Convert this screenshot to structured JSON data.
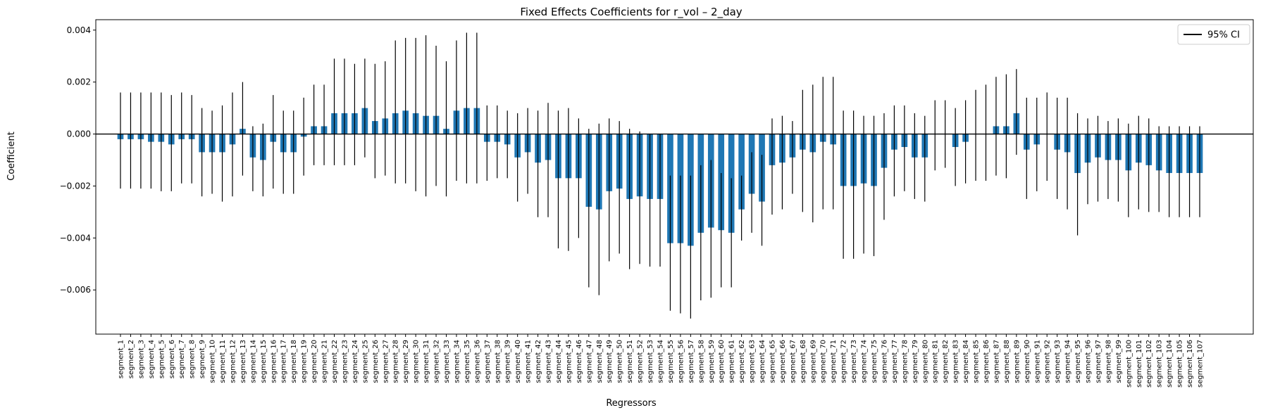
{
  "chart_data": {
    "type": "bar",
    "title": "Fixed Effects Coefficients for r_vol – 2_day",
    "xlabel": "Regressors",
    "ylabel": "Coefficient",
    "ylim": [
      -0.0077,
      0.0044
    ],
    "yticks": [
      -0.006,
      -0.004,
      -0.002,
      0.0,
      0.002,
      0.004
    ],
    "ytick_labels": [
      "−0.006",
      "−0.004",
      "−0.002",
      "0.000",
      "0.002",
      "0.004"
    ],
    "grid": false,
    "zero_line": true,
    "legend": {
      "placement": "top-right",
      "entries": [
        "95% CI"
      ]
    },
    "bar_color": "#1f77b4",
    "ci_color": "#000000",
    "categories": [
      "segment_1",
      "segment_2",
      "segment_3",
      "segment_4",
      "segment_5",
      "segment_6",
      "segment_7",
      "segment_8",
      "segment_9",
      "segment_10",
      "segment_11",
      "segment_12",
      "segment_13",
      "segment_14",
      "segment_15",
      "segment_16",
      "segment_17",
      "segment_18",
      "segment_19",
      "segment_20",
      "segment_21",
      "segment_22",
      "segment_23",
      "segment_24",
      "segment_25",
      "segment_26",
      "segment_27",
      "segment_28",
      "segment_29",
      "segment_30",
      "segment_31",
      "segment_32",
      "segment_33",
      "segment_34",
      "segment_35",
      "segment_36",
      "segment_37",
      "segment_38",
      "segment_39",
      "segment_40",
      "segment_41",
      "segment_42",
      "segment_43",
      "segment_44",
      "segment_45",
      "segment_46",
      "segment_47",
      "segment_48",
      "segment_49",
      "segment_50",
      "segment_51",
      "segment_52",
      "segment_53",
      "segment_54",
      "segment_55",
      "segment_56",
      "segment_57",
      "segment_58",
      "segment_59",
      "segment_60",
      "segment_61",
      "segment_62",
      "segment_63",
      "segment_64",
      "segment_65",
      "segment_66",
      "segment_67",
      "segment_68",
      "segment_69",
      "segment_70",
      "segment_71",
      "segment_72",
      "segment_73",
      "segment_74",
      "segment_75",
      "segment_76",
      "segment_77",
      "segment_78",
      "segment_79",
      "segment_80",
      "segment_81",
      "segment_82",
      "segment_83",
      "segment_84",
      "segment_85",
      "segment_86",
      "segment_87",
      "segment_88",
      "segment_89",
      "segment_90",
      "segment_91",
      "segment_92",
      "segment_93",
      "segment_94",
      "segment_95",
      "segment_96",
      "segment_97",
      "segment_98",
      "segment_99",
      "segment_100",
      "segment_101",
      "segment_102",
      "segment_103",
      "segment_104",
      "segment_105",
      "segment_106",
      "segment_107"
    ],
    "values": [
      -0.0002,
      -0.0002,
      -0.0002,
      -0.0003,
      -0.0003,
      -0.0004,
      -0.0002,
      -0.0002,
      -0.0007,
      -0.0007,
      -0.0007,
      -0.0004,
      0.0002,
      -0.0009,
      -0.001,
      -0.0003,
      -0.0007,
      -0.0007,
      -0.0001,
      0.0003,
      0.0003,
      0.0008,
      0.0008,
      0.0008,
      0.001,
      0.0005,
      0.0006,
      0.0008,
      0.0009,
      0.0008,
      0.0007,
      0.0007,
      0.0002,
      0.0009,
      0.001,
      0.001,
      -0.0003,
      -0.0003,
      -0.0004,
      -0.0009,
      -0.0007,
      -0.0011,
      -0.001,
      -0.0017,
      -0.0017,
      -0.0017,
      -0.0028,
      -0.0029,
      -0.0022,
      -0.0021,
      -0.0025,
      -0.0024,
      -0.0025,
      -0.0025,
      -0.0042,
      -0.0042,
      -0.0043,
      -0.0038,
      -0.0036,
      -0.0037,
      -0.0038,
      -0.0029,
      -0.0023,
      -0.0026,
      -0.0012,
      -0.0011,
      -0.0009,
      -0.0006,
      -0.0007,
      -0.0003,
      -0.0004,
      -0.002,
      -0.002,
      -0.0019,
      -0.002,
      -0.0013,
      -0.0006,
      -0.0005,
      -0.0009,
      -0.0009,
      0.0,
      0.0,
      -0.0005,
      -0.0003,
      0.0,
      0.0,
      0.0003,
      0.0003,
      0.0008,
      -0.0006,
      -0.0004,
      0.0,
      -0.0006,
      -0.0007,
      -0.0015,
      -0.0011,
      -0.0009,
      -0.001,
      -0.001,
      -0.0014,
      -0.0011,
      -0.0012,
      -0.0014,
      -0.0015,
      -0.0015,
      -0.0015,
      -0.0015
    ],
    "ci_lower": [
      -0.0021,
      -0.0021,
      -0.0021,
      -0.0021,
      -0.0022,
      -0.0022,
      -0.0019,
      -0.0019,
      -0.0024,
      -0.0023,
      -0.0026,
      -0.0024,
      -0.0016,
      -0.0022,
      -0.0024,
      -0.0021,
      -0.0023,
      -0.0023,
      -0.0016,
      -0.0012,
      -0.0012,
      -0.0012,
      -0.0012,
      -0.0012,
      -0.0009,
      -0.0017,
      -0.0016,
      -0.0019,
      -0.0019,
      -0.0022,
      -0.0024,
      -0.002,
      -0.0024,
      -0.0018,
      -0.0019,
      -0.0019,
      -0.0018,
      -0.0017,
      -0.0017,
      -0.0026,
      -0.0023,
      -0.0032,
      -0.0032,
      -0.0044,
      -0.0045,
      -0.004,
      -0.0059,
      -0.0062,
      -0.0049,
      -0.0046,
      -0.0052,
      -0.005,
      -0.0051,
      -0.0051,
      -0.0068,
      -0.0069,
      -0.0071,
      -0.0064,
      -0.0063,
      -0.0059,
      -0.0059,
      -0.0041,
      -0.0038,
      -0.0043,
      -0.0031,
      -0.0029,
      -0.0023,
      -0.003,
      -0.0034,
      -0.0029,
      -0.0029,
      -0.0048,
      -0.0048,
      -0.0046,
      -0.0047,
      -0.0033,
      -0.0024,
      -0.0022,
      -0.0025,
      -0.0026,
      -0.0014,
      -0.0013,
      -0.002,
      -0.0019,
      -0.0018,
      -0.0018,
      -0.0016,
      -0.0017,
      -0.0008,
      -0.0025,
      -0.0022,
      -0.0018,
      -0.0025,
      -0.0029,
      -0.0039,
      -0.0027,
      -0.0026,
      -0.0025,
      -0.0026,
      -0.0032,
      -0.0029,
      -0.003,
      -0.003,
      -0.0032,
      -0.0032,
      -0.0032,
      -0.0032
    ],
    "ci_upper": [
      0.0016,
      0.0016,
      0.0016,
      0.0016,
      0.0016,
      0.0015,
      0.0016,
      0.0015,
      0.001,
      0.0009,
      0.0011,
      0.0016,
      0.002,
      0.0003,
      0.0004,
      0.0015,
      0.0009,
      0.0009,
      0.0014,
      0.0019,
      0.0019,
      0.0029,
      0.0029,
      0.0027,
      0.0029,
      0.0027,
      0.0028,
      0.0036,
      0.0037,
      0.0037,
      0.0038,
      0.0034,
      0.0028,
      0.0036,
      0.0039,
      0.0039,
      0.0011,
      0.0011,
      0.0009,
      0.0008,
      0.001,
      0.0009,
      0.0012,
      0.0009,
      0.001,
      0.0006,
      0.0002,
      0.0004,
      0.0006,
      0.0005,
      0.0002,
      0.0001,
      0.0,
      0.0,
      -0.0016,
      -0.0016,
      -0.0016,
      -0.0012,
      -0.001,
      -0.0015,
      -0.0017,
      -0.0016,
      -0.0007,
      -0.0008,
      0.0006,
      0.0007,
      0.0005,
      0.0017,
      0.0019,
      0.0022,
      0.0022,
      0.0009,
      0.0009,
      0.0007,
      0.0007,
      0.0008,
      0.0011,
      0.0011,
      0.0008,
      0.0007,
      0.0013,
      0.0013,
      0.001,
      0.0013,
      0.0017,
      0.0019,
      0.0022,
      0.0023,
      0.0025,
      0.0014,
      0.0014,
      0.0016,
      0.0014,
      0.0014,
      0.0008,
      0.0006,
      0.0007,
      0.0005,
      0.0006,
      0.0004,
      0.0007,
      0.0006,
      0.0003,
      0.0003,
      0.0003,
      0.0003,
      0.0003
    ]
  }
}
